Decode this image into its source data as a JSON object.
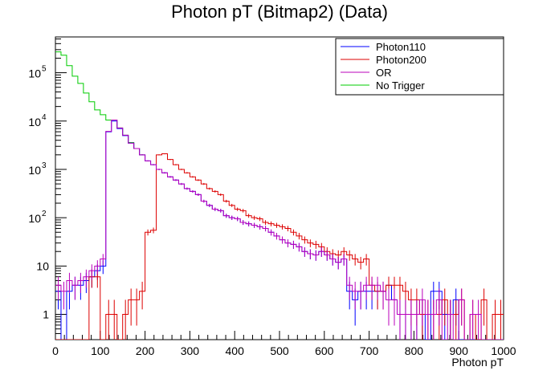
{
  "chart_data": {
    "type": "line",
    "title": "Photon pT (Bitmap2) (Data)",
    "xlabel": "Photon pT",
    "ylabel": "",
    "log_y": true,
    "xlim": [
      0,
      1000
    ],
    "ylim": [
      0.3,
      550000
    ],
    "bin_width": 12.5,
    "x_ticks": [
      0,
      100,
      200,
      300,
      400,
      500,
      600,
      700,
      800,
      900,
      1000
    ],
    "y_ticks": [
      {
        "value": 1,
        "label": "1"
      },
      {
        "value": 10,
        "label": "10"
      },
      {
        "value": 100,
        "label": "10",
        "exp": "2"
      },
      {
        "value": 1000,
        "label": "10",
        "exp": "3"
      },
      {
        "value": 10000,
        "label": "10",
        "exp": "4"
      },
      {
        "value": 100000,
        "label": "10",
        "exp": "5"
      }
    ],
    "grid": false,
    "legend_position": "top-right",
    "series": [
      {
        "name": "Photon110",
        "color": "#0000ff",
        "values": [
          3,
          0,
          3,
          4,
          4,
          5,
          6,
          8,
          10,
          6000,
          10000,
          7000,
          5000,
          3500,
          2700,
          2000,
          1500,
          1250,
          1000,
          850,
          700,
          600,
          500,
          400,
          350,
          300,
          220,
          180,
          150,
          140,
          110,
          100,
          95,
          80,
          75,
          70,
          65,
          60,
          50,
          42,
          35,
          30,
          28,
          25,
          20,
          18,
          17,
          20,
          17,
          14,
          12,
          14,
          3,
          2,
          3,
          3,
          3,
          3,
          3,
          4,
          2,
          1,
          1,
          1,
          1,
          1,
          0,
          3,
          3,
          1,
          1,
          2,
          0,
          0,
          0,
          0,
          0,
          0,
          0,
          0
        ]
      },
      {
        "name": "Photon200",
        "color": "#dd0000",
        "values": [
          0,
          0,
          0,
          0,
          0,
          0,
          6,
          6,
          0,
          1,
          1,
          0,
          1,
          2,
          2,
          3,
          50,
          55,
          2000,
          2100,
          1600,
          1250,
          1000,
          850,
          700,
          600,
          500,
          400,
          350,
          300,
          220,
          180,
          150,
          140,
          110,
          100,
          95,
          80,
          75,
          70,
          65,
          60,
          50,
          42,
          35,
          30,
          28,
          25,
          20,
          18,
          17,
          20,
          17,
          14,
          12,
          14,
          4,
          3,
          3,
          4,
          4,
          4,
          3,
          2,
          2,
          1,
          1,
          1,
          1,
          2,
          1,
          1,
          2,
          0,
          1,
          0,
          2,
          0,
          1,
          1
        ]
      },
      {
        "name": "OR",
        "color": "#bb00bb",
        "values": [
          4,
          3,
          5,
          4,
          5,
          6,
          8,
          10,
          14,
          6100,
          10500,
          7200,
          5100,
          3500,
          2700,
          2000,
          1500,
          1250,
          1000,
          850,
          700,
          600,
          500,
          400,
          350,
          300,
          220,
          180,
          150,
          140,
          110,
          100,
          95,
          80,
          75,
          70,
          65,
          60,
          50,
          42,
          35,
          30,
          28,
          25,
          20,
          18,
          17,
          20,
          17,
          14,
          12,
          14,
          4,
          3,
          3,
          4,
          4,
          4,
          3,
          2,
          2,
          1,
          1,
          1,
          1,
          2,
          1,
          1,
          2,
          0,
          1,
          0,
          2,
          0,
          1,
          1,
          0,
          0,
          0,
          0
        ]
      },
      {
        "name": "No Trigger",
        "color": "#00cc00",
        "values": [
          270000,
          230000,
          140000,
          85000,
          60000,
          38000,
          25000,
          17000,
          13500,
          10500,
          10500,
          7200,
          5100,
          3600,
          2700,
          2000
        ]
      }
    ]
  }
}
